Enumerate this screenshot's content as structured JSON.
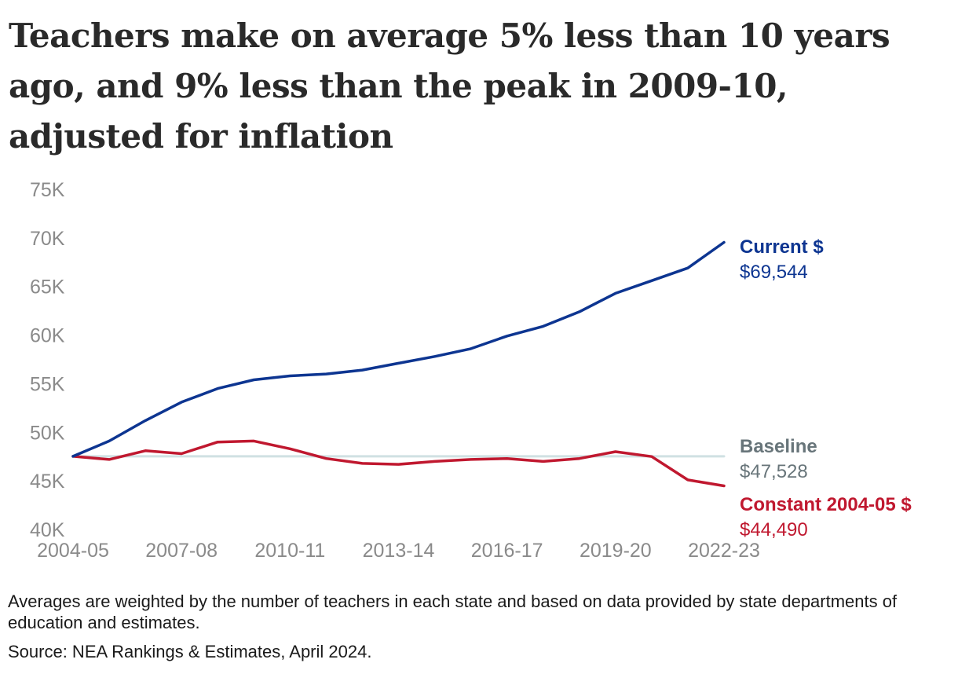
{
  "title": "Teachers make on average 5% less than 10 years ago, and 9% less than the peak in 2009-10, adjusted for inflation",
  "footnote": "Averages are weighted by the number of teachers in each state and based on data provided by state departments of education and estimates.",
  "source": "Source: NEA Rankings & Estimates, April 2024.",
  "colors": {
    "current": "#0d3591",
    "constant": "#c0182f",
    "baseline_label": "#68757a",
    "baseline_line": "#d0e1e3"
  },
  "chart_data": {
    "type": "line",
    "x": [
      "2004-05",
      "2005-06",
      "2006-07",
      "2007-08",
      "2008-09",
      "2009-10",
      "2010-11",
      "2011-12",
      "2012-13",
      "2013-14",
      "2014-15",
      "2015-16",
      "2016-17",
      "2017-18",
      "2018-19",
      "2019-20",
      "2020-21",
      "2021-22",
      "2022-23"
    ],
    "x_tick_labels": [
      "2004-05",
      "2007-08",
      "2010-11",
      "2013-14",
      "2016-17",
      "2019-20",
      "2022-23"
    ],
    "y_tick_labels": [
      "40K",
      "45K",
      "50K",
      "55K",
      "60K",
      "65K",
      "70K",
      "75K"
    ],
    "ylim": [
      40000,
      75000
    ],
    "series": [
      {
        "name": "Current $",
        "end_value_label": "$69,544",
        "values": [
          47528,
          49100,
          51200,
          53100,
          54500,
          55400,
          55800,
          56000,
          56400,
          57100,
          57800,
          58600,
          59900,
          60900,
          62400,
          64300,
          65600,
          66900,
          69544
        ]
      },
      {
        "name": "Constant 2004-05 $",
        "end_value_label": "$44,490",
        "values": [
          47528,
          47200,
          48100,
          47800,
          49000,
          49100,
          48300,
          47300,
          46800,
          46700,
          47000,
          47200,
          47300,
          47000,
          47300,
          48000,
          47500,
          45100,
          44490
        ]
      },
      {
        "name": "Baseline",
        "end_value_label": "$47,528",
        "values": [
          47528,
          47528,
          47528,
          47528,
          47528,
          47528,
          47528,
          47528,
          47528,
          47528,
          47528,
          47528,
          47528,
          47528,
          47528,
          47528,
          47528,
          47528,
          47528
        ]
      }
    ],
    "grid": false,
    "legend": "direct labels at line ends"
  }
}
